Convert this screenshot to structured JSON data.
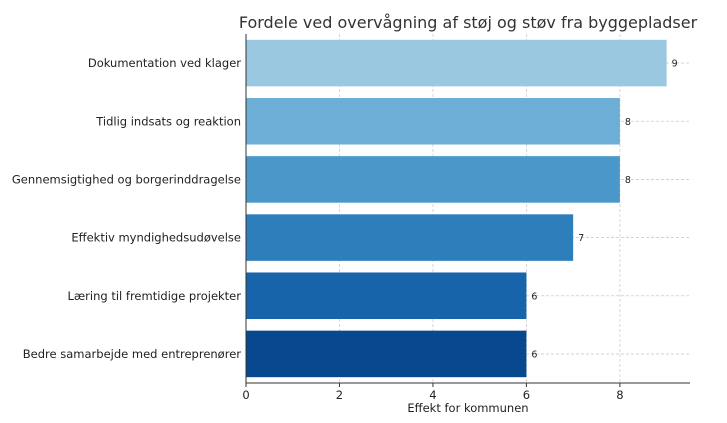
{
  "chart_data": {
    "type": "bar",
    "orientation": "horizontal",
    "title": "Fordele ved overvågning af støj og støv fra byggepladser",
    "xlabel": "Effekt for kommunen",
    "ylabel": "",
    "categories": [
      "Dokumentation ved klager",
      "Tidlig indsats og reaktion",
      "Gennemsigtighed og borgerinddragelse",
      "Effektiv myndighedsudøvelse",
      "Læring til fremtidige projekter",
      "Bedre samarbejde med entreprenører"
    ],
    "values": [
      9,
      8,
      8,
      7,
      6,
      6
    ],
    "value_labels": [
      "9",
      "8",
      "8",
      "7",
      "6",
      "6"
    ],
    "colors": [
      "#9ac8e1",
      "#6caed6",
      "#4a98c9",
      "#2e7ebc",
      "#1764ab",
      "#08488e"
    ],
    "xlim": [
      0,
      9.5
    ],
    "xticks": [
      0,
      2,
      4,
      6,
      8
    ],
    "xtick_labels": [
      "0",
      "2",
      "4",
      "6",
      "8"
    ],
    "grid": true
  }
}
